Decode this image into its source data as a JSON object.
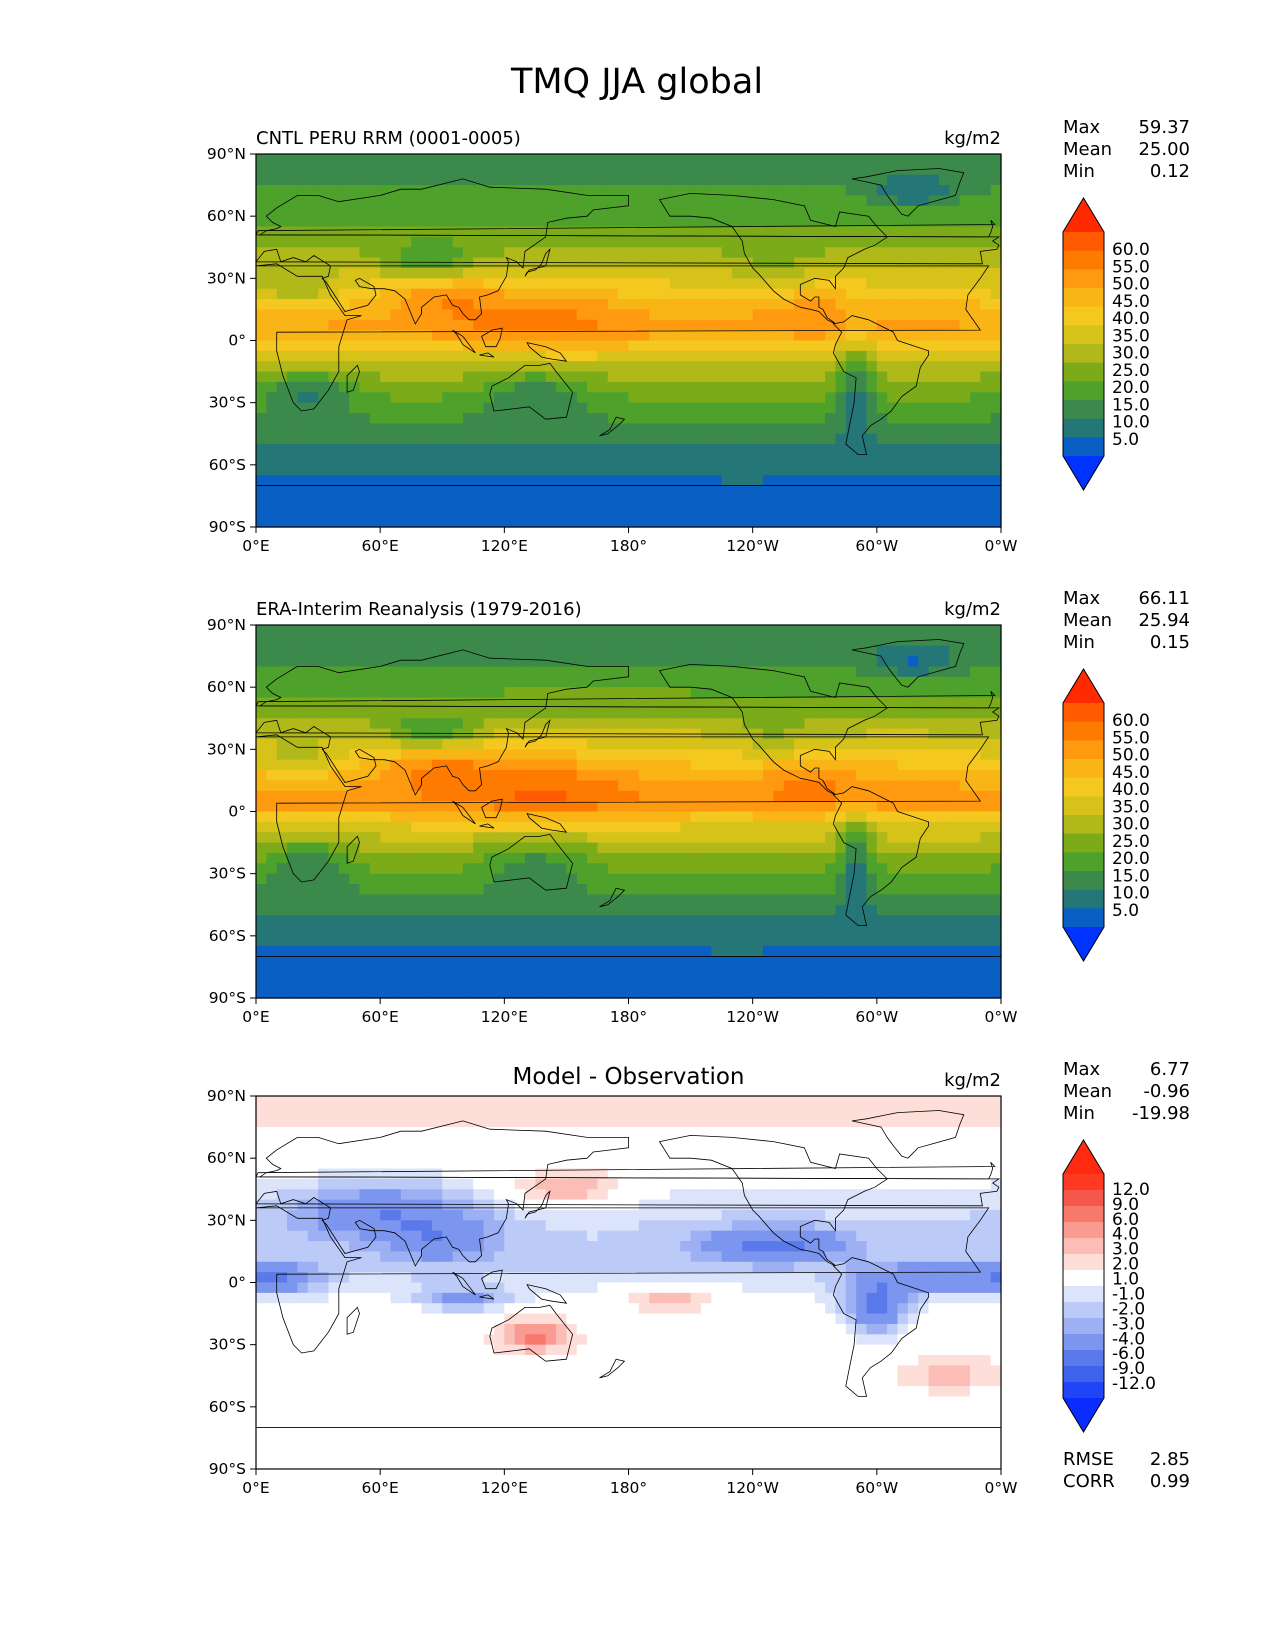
{
  "chart_data": {
    "type": "heatmap",
    "title": "TMQ JJA global",
    "x_ticks": [
      "0°E",
      "60°E",
      "120°E",
      "180°",
      "120°W",
      "60°W",
      "0°W"
    ],
    "y_ticks": [
      "90°N",
      "60°N",
      "30°N",
      "0°",
      "30°S",
      "60°S",
      "90°S"
    ],
    "panels": [
      {
        "left_title": "CNTL PERU RRM (0001-0005)",
        "center_title": "",
        "units": "kg/m2",
        "stats": [
          {
            "label": "Max",
            "value": "59.37"
          },
          {
            "label": "Mean",
            "value": "25.00"
          },
          {
            "label": "Min",
            "value": "0.12"
          }
        ],
        "extra_stats": [],
        "colorbar": {
          "kind": "sequential",
          "labels": [
            "60.0",
            "55.0",
            "50.0",
            "45.0",
            "40.0",
            "35.0",
            "30.0",
            "25.0",
            "20.0",
            "15.0",
            "10.0",
            "5.0"
          ],
          "colors": [
            "#ff2a00",
            "#ff5a00",
            "#ff7a00",
            "#ff9a10",
            "#f9b516",
            "#f5c820",
            "#d7c21a",
            "#b0b81a",
            "#7cab1a",
            "#4ea12a",
            "#3b8a4b",
            "#247677",
            "#0a5fc4",
            "#0033ff"
          ]
        },
        "field": {
          "kind": "model",
          "band_values": [
            {
              "lat": 90,
              "v": 14
            },
            {
              "lat": 75,
              "v": 15
            },
            {
              "lat": 60,
              "v": 19
            },
            {
              "lat": 45,
              "v": 24
            },
            {
              "lat": 30,
              "v": 33
            },
            {
              "lat": 15,
              "v": 42
            },
            {
              "lat": 5,
              "v": 46
            },
            {
              "lat": -5,
              "v": 36
            },
            {
              "lat": -15,
              "v": 27
            },
            {
              "lat": -30,
              "v": 19
            },
            {
              "lat": -45,
              "v": 12
            },
            {
              "lat": -60,
              "v": 7
            },
            {
              "lat": -75,
              "v": 3
            },
            {
              "lat": -90,
              "v": 2
            }
          ]
        }
      },
      {
        "left_title": "ERA-Interim Reanalysis (1979-2016)",
        "center_title": "",
        "units": "kg/m2",
        "stats": [
          {
            "label": "Max",
            "value": "66.11"
          },
          {
            "label": "Mean",
            "value": "25.94"
          },
          {
            "label": "Min",
            "value": "0.15"
          }
        ],
        "extra_stats": [],
        "colorbar": {
          "kind": "sequential",
          "labels": [
            "60.0",
            "55.0",
            "50.0",
            "45.0",
            "40.0",
            "35.0",
            "30.0",
            "25.0",
            "20.0",
            "15.0",
            "10.0",
            "5.0"
          ],
          "colors": [
            "#ff2a00",
            "#ff5a00",
            "#ff7a00",
            "#ff9a10",
            "#f9b516",
            "#f5c820",
            "#d7c21a",
            "#b0b81a",
            "#7cab1a",
            "#4ea12a",
            "#3b8a4b",
            "#247677",
            "#0a5fc4",
            "#0033ff"
          ]
        },
        "field": {
          "kind": "obs",
          "band_values": [
            {
              "lat": 90,
              "v": 13
            },
            {
              "lat": 75,
              "v": 14
            },
            {
              "lat": 60,
              "v": 19
            },
            {
              "lat": 45,
              "v": 25
            },
            {
              "lat": 30,
              "v": 35
            },
            {
              "lat": 15,
              "v": 44
            },
            {
              "lat": 5,
              "v": 48
            },
            {
              "lat": -5,
              "v": 37
            },
            {
              "lat": -15,
              "v": 28
            },
            {
              "lat": -30,
              "v": 20
            },
            {
              "lat": -45,
              "v": 12
            },
            {
              "lat": -60,
              "v": 7
            },
            {
              "lat": -75,
              "v": 3
            },
            {
              "lat": -90,
              "v": 2
            }
          ]
        }
      },
      {
        "left_title": "",
        "center_title": "Model - Observation",
        "units": "kg/m2",
        "stats": [
          {
            "label": "Max",
            "value": "6.77"
          },
          {
            "label": "Mean",
            "value": "-0.96"
          },
          {
            "label": "Min",
            "value": "-19.98"
          }
        ],
        "extra_stats": [
          {
            "label": "RMSE",
            "value": "2.85"
          },
          {
            "label": "CORR",
            "value": "0.99"
          }
        ],
        "colorbar": {
          "kind": "diverging",
          "labels": [
            "12.0",
            "9.0",
            "6.0",
            "4.0",
            "3.0",
            "2.0",
            "1.0",
            "-1.0",
            "-2.0",
            "-3.0",
            "-4.0",
            "-6.0",
            "-9.0",
            "-12.0"
          ],
          "colors": [
            "#ff2a10",
            "#ff3a22",
            "#f5584a",
            "#f8786c",
            "#f99b91",
            "#fbbdb5",
            "#fdded9",
            "#ffffff",
            "#dce4fb",
            "#bccaf7",
            "#9cb0f3",
            "#7c96ef",
            "#5a7aeb",
            "#3d63ee",
            "#1f45f6",
            "#0a2cff"
          ]
        },
        "field": {
          "kind": "diff",
          "band_values": [
            {
              "lat": 90,
              "v": 1.5
            },
            {
              "lat": 75,
              "v": 1
            },
            {
              "lat": 60,
              "v": 0
            },
            {
              "lat": 45,
              "v": -1
            },
            {
              "lat": 30,
              "v": -2
            },
            {
              "lat": 15,
              "v": -2
            },
            {
              "lat": 5,
              "v": -2
            },
            {
              "lat": -5,
              "v": -1
            },
            {
              "lat": -15,
              "v": 0
            },
            {
              "lat": -30,
              "v": 0.5
            },
            {
              "lat": -45,
              "v": 0
            },
            {
              "lat": -60,
              "v": 0
            },
            {
              "lat": -75,
              "v": 0
            },
            {
              "lat": -90,
              "v": 0
            }
          ]
        }
      }
    ]
  }
}
